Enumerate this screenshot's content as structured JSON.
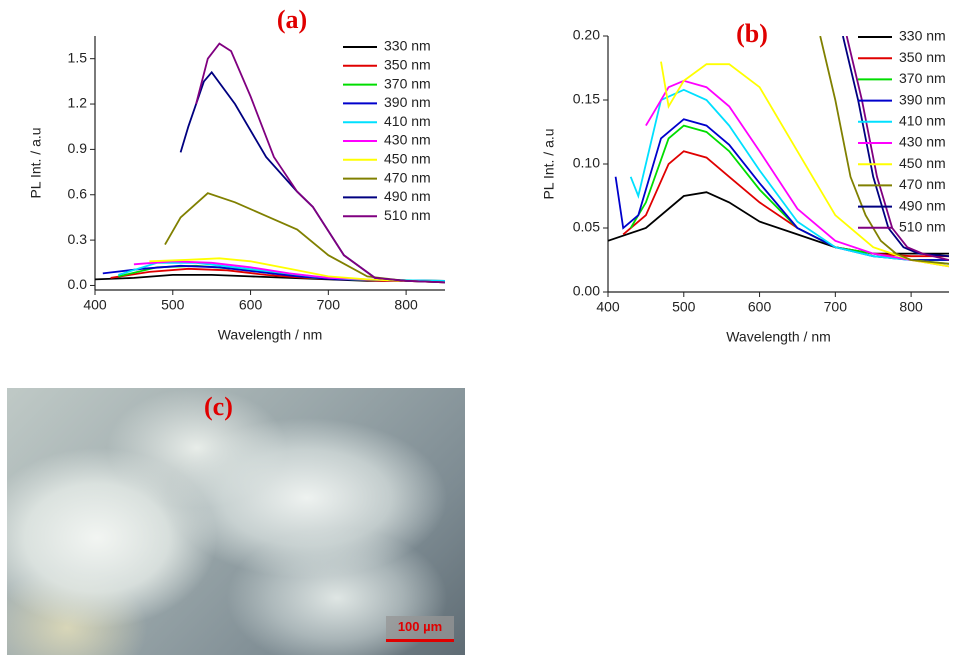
{
  "chart_data": [
    {
      "type": "line",
      "title": "(a)",
      "x_label": "Wavelength / nm",
      "y_label": "PL Int. / a.u",
      "xlim": [
        400,
        850
      ],
      "xticks": [
        400,
        500,
        600,
        700,
        800
      ],
      "ylim": [
        -0.03,
        1.65
      ],
      "yticks": [
        {
          "value": 0,
          "label": "0.0"
        },
        0.3,
        0.6,
        0.9,
        1.2,
        1.5
      ],
      "legend": "upper right",
      "series": [
        {
          "name": "330 nm",
          "color": "#000000",
          "x": [
            400,
            450,
            500,
            550,
            600,
            650,
            700,
            750,
            800,
            850
          ],
          "values": [
            0.04,
            0.05,
            0.07,
            0.07,
            0.06,
            0.05,
            0.04,
            0.03,
            0.03,
            0.03
          ]
        },
        {
          "name": "350 nm",
          "color": "#e00000",
          "x": [
            420,
            470,
            520,
            570,
            620,
            670,
            720,
            770,
            850
          ],
          "values": [
            0.05,
            0.09,
            0.11,
            0.1,
            0.07,
            0.05,
            0.04,
            0.03,
            0.03
          ]
        },
        {
          "name": "370 nm",
          "color": "#00dd00",
          "x": [
            430,
            480,
            530,
            580,
            630,
            680,
            730,
            850
          ],
          "values": [
            0.06,
            0.12,
            0.13,
            0.11,
            0.08,
            0.05,
            0.04,
            0.03
          ]
        },
        {
          "name": "390 nm",
          "color": "#0000cc",
          "x": [
            410,
            460,
            510,
            560,
            610,
            660,
            710,
            850
          ],
          "values": [
            0.08,
            0.11,
            0.13,
            0.12,
            0.09,
            0.06,
            0.04,
            0.03
          ]
        },
        {
          "name": "410 nm",
          "color": "#00e0ff",
          "x": [
            430,
            480,
            530,
            580,
            630,
            680,
            730,
            850
          ],
          "values": [
            0.07,
            0.15,
            0.15,
            0.12,
            0.09,
            0.06,
            0.04,
            0.03
          ]
        },
        {
          "name": "430 nm",
          "color": "#ff00ff",
          "x": [
            450,
            500,
            550,
            600,
            650,
            700,
            750,
            850
          ],
          "values": [
            0.14,
            0.16,
            0.15,
            0.12,
            0.08,
            0.05,
            0.04,
            0.02
          ]
        },
        {
          "name": "450 nm",
          "color": "#ffff00",
          "x": [
            470,
            520,
            560,
            600,
            650,
            700,
            750,
            850
          ],
          "values": [
            0.16,
            0.17,
            0.18,
            0.16,
            0.11,
            0.06,
            0.04,
            0.02
          ]
        },
        {
          "name": "470 nm",
          "color": "#808000",
          "x": [
            490,
            510,
            545,
            580,
            620,
            660,
            700,
            750,
            800,
            850
          ],
          "values": [
            0.27,
            0.45,
            0.61,
            0.55,
            0.46,
            0.37,
            0.2,
            0.06,
            0.03,
            0.02
          ]
        },
        {
          "name": "490 nm",
          "color": "#000080",
          "x": [
            510,
            520,
            540,
            550,
            580,
            620,
            660,
            680,
            720,
            760,
            800,
            850
          ],
          "values": [
            0.88,
            1.05,
            1.35,
            1.41,
            1.2,
            0.85,
            0.62,
            0.52,
            0.2,
            0.05,
            0.03,
            0.02
          ]
        },
        {
          "name": "510 nm",
          "color": "#800080",
          "x": [
            530,
            545,
            560,
            575,
            600,
            630,
            660,
            680,
            720,
            760,
            800,
            850
          ],
          "values": [
            1.2,
            1.5,
            1.6,
            1.55,
            1.25,
            0.85,
            0.62,
            0.52,
            0.2,
            0.05,
            0.03,
            0.02
          ]
        }
      ]
    },
    {
      "type": "line",
      "title": "(b)",
      "x_label": "Wavelength / nm",
      "y_label": "PL Int. / a.u",
      "xlim": [
        400,
        850
      ],
      "xticks": [
        400,
        500,
        600,
        700,
        800
      ],
      "ylim": [
        0,
        0.2
      ],
      "yticks": [
        {
          "value": 0,
          "label": "0.00"
        },
        0.05,
        {
          "value": 0.1,
          "label": "0.10"
        },
        0.15,
        {
          "value": 0.2,
          "label": "0.20"
        }
      ],
      "legend": "upper right",
      "series": [
        {
          "name": "330 nm",
          "color": "#000000",
          "x": [
            400,
            450,
            500,
            530,
            560,
            600,
            650,
            700,
            750,
            800,
            850
          ],
          "values": [
            0.04,
            0.05,
            0.075,
            0.078,
            0.07,
            0.055,
            0.045,
            0.035,
            0.03,
            0.03,
            0.03
          ]
        },
        {
          "name": "350 nm",
          "color": "#e00000",
          "x": [
            420,
            450,
            480,
            500,
            530,
            560,
            600,
            650,
            700,
            750,
            800,
            850
          ],
          "values": [
            0.045,
            0.06,
            0.1,
            0.11,
            0.105,
            0.09,
            0.07,
            0.05,
            0.035,
            0.03,
            0.028,
            0.028
          ]
        },
        {
          "name": "370 nm",
          "color": "#00dd00",
          "x": [
            430,
            450,
            480,
            500,
            530,
            560,
            600,
            650,
            700,
            750,
            800,
            850
          ],
          "values": [
            0.05,
            0.07,
            0.12,
            0.13,
            0.125,
            0.11,
            0.08,
            0.05,
            0.035,
            0.03,
            0.025,
            0.025
          ]
        },
        {
          "name": "390 nm",
          "color": "#0000cc",
          "x": [
            410,
            420,
            440,
            470,
            500,
            530,
            560,
            600,
            650,
            700,
            750,
            800,
            850
          ],
          "values": [
            0.09,
            0.05,
            0.06,
            0.12,
            0.135,
            0.13,
            0.115,
            0.085,
            0.05,
            0.035,
            0.028,
            0.025,
            0.025
          ]
        },
        {
          "name": "410 nm",
          "color": "#00e0ff",
          "x": [
            430,
            440,
            470,
            500,
            530,
            560,
            600,
            650,
            700,
            750,
            800,
            850
          ],
          "values": [
            0.09,
            0.075,
            0.15,
            0.158,
            0.15,
            0.13,
            0.095,
            0.055,
            0.035,
            0.028,
            0.025,
            0.022
          ]
        },
        {
          "name": "430 nm",
          "color": "#ff00ff",
          "x": [
            450,
            460,
            480,
            500,
            530,
            560,
            600,
            650,
            700,
            750,
            800,
            850
          ],
          "values": [
            0.13,
            0.14,
            0.16,
            0.165,
            0.16,
            0.145,
            0.11,
            0.065,
            0.04,
            0.03,
            0.025,
            0.02
          ]
        },
        {
          "name": "450 nm",
          "color": "#ffff00",
          "x": [
            470,
            480,
            500,
            530,
            560,
            600,
            650,
            700,
            750,
            800,
            850
          ],
          "values": [
            0.18,
            0.145,
            0.165,
            0.178,
            0.178,
            0.16,
            0.11,
            0.06,
            0.035,
            0.025,
            0.02
          ]
        },
        {
          "name": "470 nm",
          "color": "#808000",
          "x": [
            680,
            700,
            720,
            740,
            760,
            780,
            800,
            850
          ],
          "values": [
            0.2,
            0.15,
            0.09,
            0.06,
            0.04,
            0.03,
            0.025,
            0.022
          ]
        },
        {
          "name": "490 nm",
          "color": "#000080",
          "x": [
            710,
            730,
            750,
            770,
            790,
            810,
            850
          ],
          "values": [
            0.2,
            0.15,
            0.09,
            0.05,
            0.035,
            0.03,
            0.028
          ]
        },
        {
          "name": "510 nm",
          "color": "#800080",
          "x": [
            715,
            735,
            755,
            775,
            795,
            815,
            850
          ],
          "values": [
            0.2,
            0.15,
            0.09,
            0.05,
            0.035,
            0.03,
            0.025
          ]
        }
      ]
    }
  ],
  "image_panel": {
    "label": "(c)",
    "scale_bar": "100 µm"
  }
}
